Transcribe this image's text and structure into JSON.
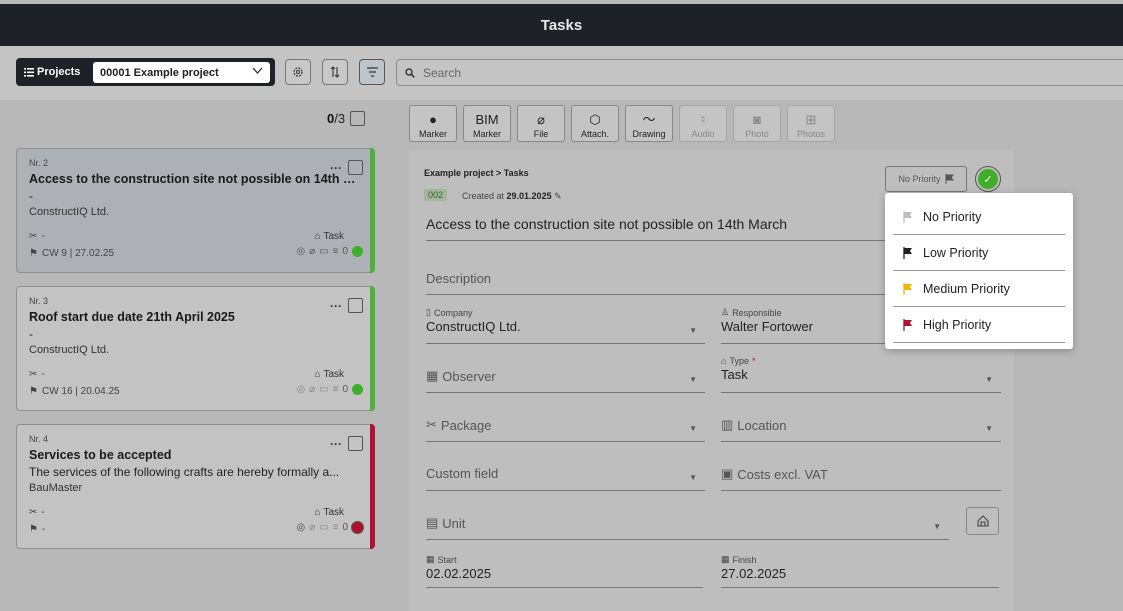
{
  "header": {
    "title": "Tasks"
  },
  "toolbar": {
    "projects_label": "Projects",
    "project_selected": "00001 Example project",
    "search_placeholder": "Search"
  },
  "list": {
    "selected_count": "0",
    "total_count": "/3",
    "cards": [
      {
        "nr": "Nr. 2",
        "title": "Access to the construction site not possible on 14th Ma...",
        "desc": "-",
        "company": "ConstructIQ Ltd.",
        "package": "-",
        "type": "Task",
        "deadline": "CW 9 | 27.02.25",
        "count": "0",
        "status_color": "#3fae2a",
        "bar_color": "#4fb03a"
      },
      {
        "nr": "Nr. 3",
        "title": "Roof start due date 21th April 2025",
        "desc": "-",
        "company": "ConstructIQ Ltd.",
        "package": "-",
        "type": "Task",
        "deadline": "CW 16 | 20.04.25",
        "count": "0",
        "status_color": "#3fae2a",
        "bar_color": "#4fb03a"
      },
      {
        "nr": "Nr. 4",
        "title": "Services to be accepted",
        "desc": "The services of the following crafts are hereby formally a...",
        "company": "BauMaster",
        "package": "-",
        "type": "Task",
        "deadline": "-",
        "count": "0",
        "status_color": "#b01030",
        "bar_color": "#b01030"
      }
    ]
  },
  "tools": [
    {
      "icon": "●",
      "top": "",
      "label": "Marker",
      "disabled": false
    },
    {
      "icon": "",
      "top": "BIM",
      "label": "Marker",
      "disabled": false
    },
    {
      "icon": "⌀",
      "top": "",
      "label": "File",
      "disabled": false
    },
    {
      "icon": "⬡",
      "top": "",
      "label": "Attach.",
      "disabled": false
    },
    {
      "icon": "〜",
      "top": "",
      "label": "Drawing",
      "disabled": false
    },
    {
      "icon": "♮",
      "top": "",
      "label": "Audio",
      "disabled": true
    },
    {
      "icon": "◙",
      "top": "",
      "label": "Photo",
      "disabled": true
    },
    {
      "icon": "⊞",
      "top": "",
      "label": "Photos",
      "disabled": true
    }
  ],
  "detail": {
    "breadcrumb": "Example project > Tasks",
    "id": "002",
    "created_prefix": "Created at ",
    "created_date": "29.01.2025",
    "priority_button": "No Priority",
    "title": "Access to the construction site not possible on 14th March",
    "description_placeholder": "Description",
    "company_label": "Company",
    "company_value": "ConstructIQ Ltd.",
    "responsible_label": "Responsible",
    "responsible_value": "Walter Fortower",
    "observer_placeholder": "Observer",
    "type_label": "Type",
    "type_required": "*",
    "type_value": "Task",
    "package_placeholder": "Package",
    "location_placeholder": "Location",
    "custom_field_placeholder": "Custom field",
    "costs_placeholder": "Costs excl. VAT",
    "unit_placeholder": "Unit",
    "start_label": "Start",
    "start_value": "02.02.2025",
    "finish_label": "Finish",
    "finish_value": "27.02.2025"
  },
  "priority_menu": [
    {
      "label": "No Priority",
      "color": "#b9bec4"
    },
    {
      "label": "Low Priority",
      "color": "#1e2128"
    },
    {
      "label": "Medium Priority",
      "color": "#f2b705"
    },
    {
      "label": "High Priority",
      "color": "#b01030"
    }
  ]
}
